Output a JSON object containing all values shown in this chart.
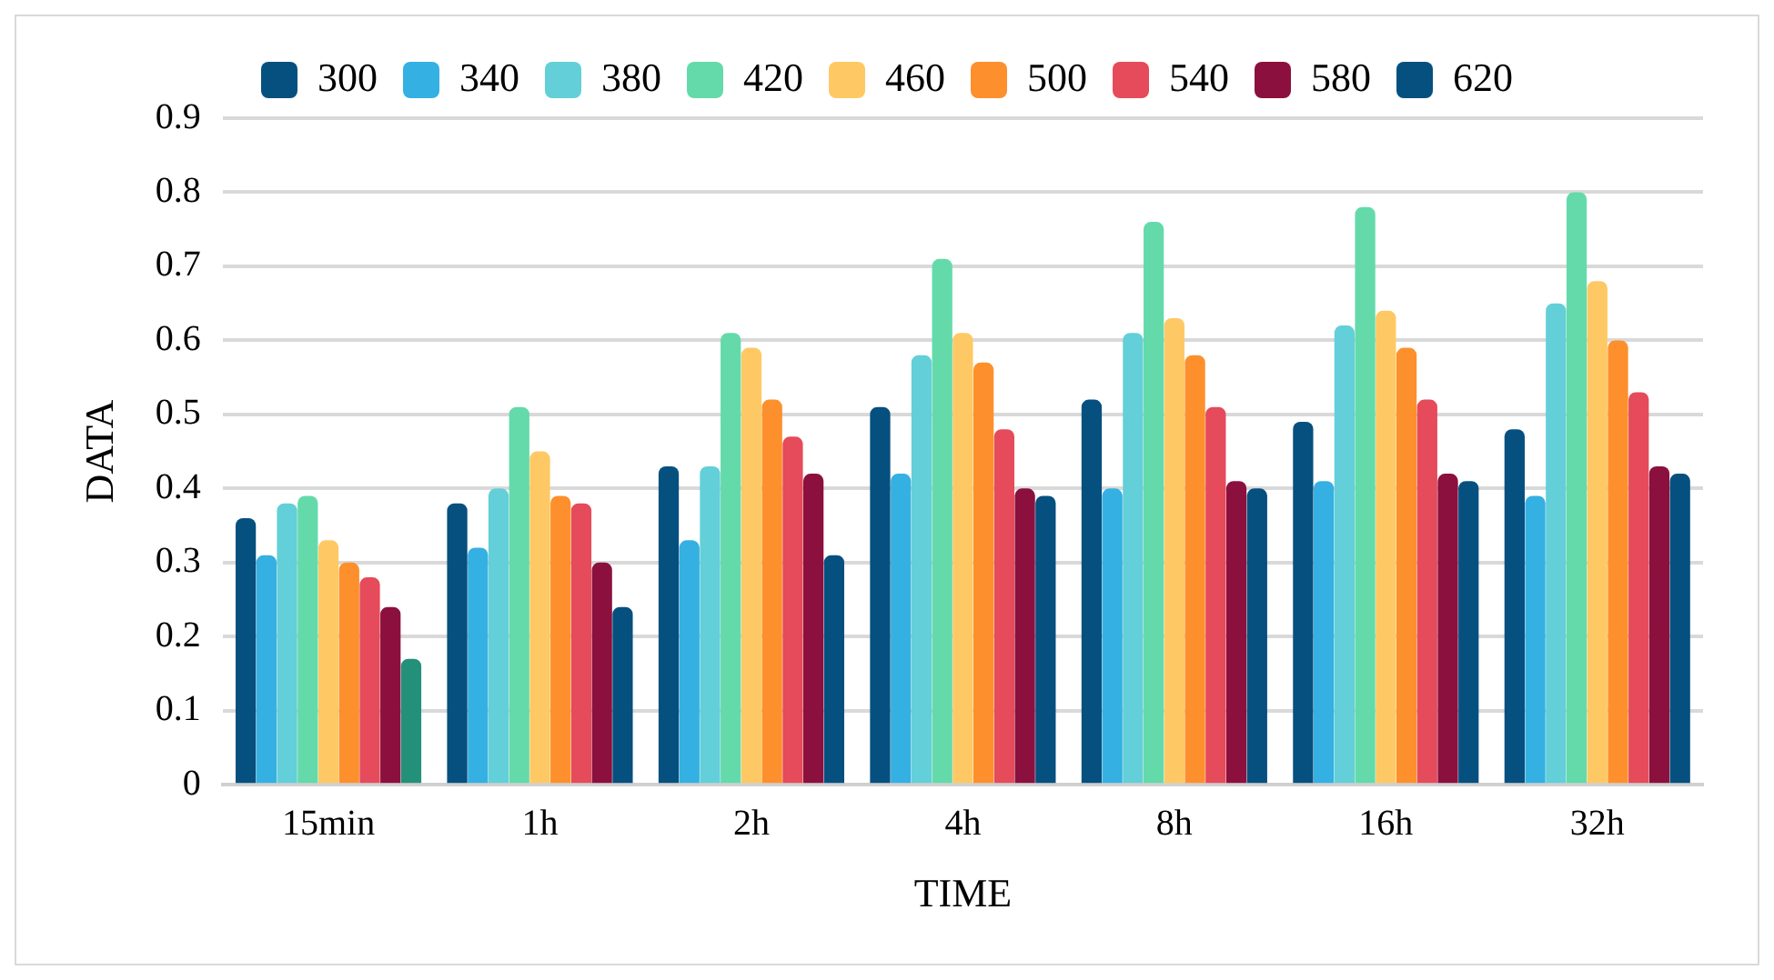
{
  "chart_data": {
    "type": "bar",
    "xlabel": "TIME",
    "ylabel": "DATA",
    "categories": [
      "15min",
      "1h",
      "2h",
      "4h",
      "8h",
      "16h",
      "32h"
    ],
    "series": [
      {
        "name": "300",
        "color": "#06507f",
        "values": [
          0.36,
          0.38,
          0.43,
          0.51,
          0.52,
          0.49,
          0.48
        ]
      },
      {
        "name": "340",
        "color": "#35b0e2",
        "values": [
          0.31,
          0.32,
          0.33,
          0.42,
          0.4,
          0.41,
          0.39
        ]
      },
      {
        "name": "380",
        "color": "#63cfd8",
        "values": [
          0.38,
          0.4,
          0.43,
          0.58,
          0.61,
          0.62,
          0.65
        ]
      },
      {
        "name": "420",
        "color": "#64daaa",
        "values": [
          0.39,
          0.51,
          0.61,
          0.71,
          0.76,
          0.78,
          0.8
        ]
      },
      {
        "name": "460",
        "color": "#fec964",
        "values": [
          0.33,
          0.45,
          0.59,
          0.61,
          0.63,
          0.64,
          0.68
        ]
      },
      {
        "name": "500",
        "color": "#fd902c",
        "values": [
          0.3,
          0.39,
          0.52,
          0.57,
          0.58,
          0.59,
          0.6
        ]
      },
      {
        "name": "540",
        "color": "#e54b5a",
        "values": [
          0.28,
          0.38,
          0.47,
          0.48,
          0.51,
          0.52,
          0.53
        ]
      },
      {
        "name": "580",
        "color": "#8b103e",
        "values": [
          0.24,
          0.3,
          0.42,
          0.4,
          0.41,
          0.42,
          0.43
        ]
      },
      {
        "name": "620",
        "color": "#06507f",
        "colors": [
          "#23917a",
          "#06507f",
          "#06507f",
          "#06507f",
          "#06507f",
          "#06507f",
          "#06507f"
        ],
        "values": [
          0.17,
          0.24,
          0.31,
          0.39,
          0.4,
          0.41,
          0.42
        ]
      }
    ],
    "ylim": [
      0,
      0.9
    ],
    "yticks": [
      0,
      0.1,
      0.2,
      0.3,
      0.4,
      0.5,
      0.6,
      0.7,
      0.8,
      0.9
    ],
    "grid": "y",
    "legend": "top"
  }
}
